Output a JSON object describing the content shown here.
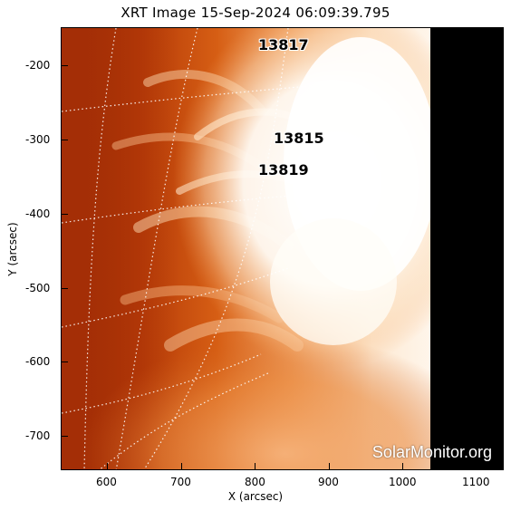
{
  "title": "XRT Image 15-Sep-2024 06:09:39.795",
  "axes": {
    "xlabel": "X (arcsec)",
    "ylabel": "Y (arcsec)",
    "xticks": [
      "600",
      "700",
      "800",
      "900",
      "1000",
      "1100"
    ],
    "yticks": [
      "-200",
      "-300",
      "-400",
      "-500",
      "-600",
      "-700"
    ]
  },
  "active_regions": [
    "13817",
    "13815",
    "13819"
  ],
  "watermark": "SolarMonitor.org",
  "colors": {
    "disk_dark": "#8b1e00",
    "disk_mid": "#d45a10",
    "corona_bright": "#fff6ea",
    "off_image": "#000000"
  }
}
